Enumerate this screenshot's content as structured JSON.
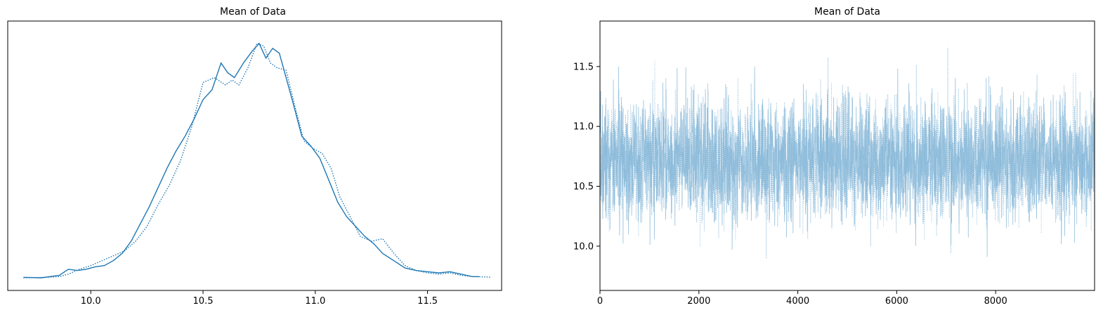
{
  "chart_data": [
    {
      "type": "line",
      "title": "Mean of Data",
      "xlabel": "",
      "ylabel": "",
      "xlim": [
        9.63,
        11.83
      ],
      "x_ticks": [
        10.0,
        10.5,
        11.0,
        11.5
      ],
      "x_tick_labels": [
        "10.0",
        "10.5",
        "11.0",
        "11.5"
      ],
      "y_ticks": [],
      "grid": false,
      "series": [
        {
          "line_style": "solid",
          "color": "#1f77b4",
          "x": [
            9.7,
            9.78,
            9.86,
            9.9,
            9.94,
            9.98,
            10.02,
            10.06,
            10.1,
            10.14,
            10.18,
            10.22,
            10.26,
            10.3,
            10.34,
            10.38,
            10.42,
            10.46,
            10.5,
            10.54,
            10.58,
            10.61,
            10.64,
            10.68,
            10.72,
            10.75,
            10.78,
            10.81,
            10.84,
            10.87,
            10.9,
            10.94,
            10.98,
            11.02,
            11.06,
            11.1,
            11.14,
            11.18,
            11.22,
            11.26,
            11.3,
            11.35,
            11.4,
            11.45,
            11.5,
            11.55,
            11.6,
            11.65,
            11.7,
            11.73
          ],
          "y": [
            0.002,
            0.0,
            0.01,
            0.035,
            0.03,
            0.035,
            0.045,
            0.05,
            0.07,
            0.1,
            0.15,
            0.22,
            0.29,
            0.37,
            0.45,
            0.52,
            0.58,
            0.65,
            0.73,
            0.77,
            0.88,
            0.84,
            0.82,
            0.88,
            0.93,
            0.96,
            0.9,
            0.94,
            0.92,
            0.82,
            0.72,
            0.58,
            0.54,
            0.49,
            0.4,
            0.31,
            0.25,
            0.21,
            0.17,
            0.14,
            0.1,
            0.07,
            0.04,
            0.03,
            0.025,
            0.02,
            0.025,
            0.015,
            0.005,
            0.005
          ]
        },
        {
          "line_style": "dotted",
          "color": "#1f77b4",
          "x": [
            9.7,
            9.8,
            9.86,
            9.9,
            9.95,
            10.0,
            10.05,
            10.1,
            10.15,
            10.2,
            10.25,
            10.3,
            10.35,
            10.4,
            10.45,
            10.5,
            10.55,
            10.6,
            10.63,
            10.66,
            10.7,
            10.74,
            10.77,
            10.8,
            10.83,
            10.87,
            10.91,
            10.95,
            10.99,
            11.03,
            11.07,
            11.11,
            11.15,
            11.2,
            11.25,
            11.3,
            11.35,
            11.4,
            11.45,
            11.5,
            11.55,
            11.6,
            11.65,
            11.7,
            11.78
          ],
          "y": [
            0.0,
            0.002,
            0.005,
            0.015,
            0.035,
            0.05,
            0.07,
            0.09,
            0.11,
            0.15,
            0.21,
            0.3,
            0.38,
            0.48,
            0.62,
            0.8,
            0.82,
            0.79,
            0.81,
            0.79,
            0.86,
            0.96,
            0.95,
            0.88,
            0.86,
            0.85,
            0.7,
            0.56,
            0.53,
            0.51,
            0.45,
            0.33,
            0.26,
            0.17,
            0.15,
            0.16,
            0.1,
            0.05,
            0.03,
            0.02,
            0.015,
            0.02,
            0.01,
            0.005,
            0.003
          ]
        }
      ]
    },
    {
      "type": "line",
      "title": "Mean of Data",
      "xlabel": "",
      "ylabel": "",
      "xlim": [
        0,
        10000
      ],
      "ylim": [
        9.63,
        11.88
      ],
      "x_ticks": [
        0,
        2000,
        4000,
        6000,
        8000
      ],
      "x_tick_labels": [
        "0",
        "2000",
        "4000",
        "6000",
        "8000"
      ],
      "y_ticks": [
        10.0,
        10.5,
        11.0,
        11.5
      ],
      "y_tick_labels": [
        "10.0",
        "10.5",
        "11.0",
        "11.5"
      ],
      "grid": false,
      "n_draws": 10000,
      "center": 10.72,
      "spread_sd": 0.25,
      "range_observed": [
        9.7,
        11.78
      ],
      "series": [
        {
          "line_style": "solid",
          "color": "#7fb3d5",
          "seed": 7
        },
        {
          "line_style": "dotted",
          "color": "#7fb3d5",
          "seed": 13
        }
      ]
    }
  ]
}
